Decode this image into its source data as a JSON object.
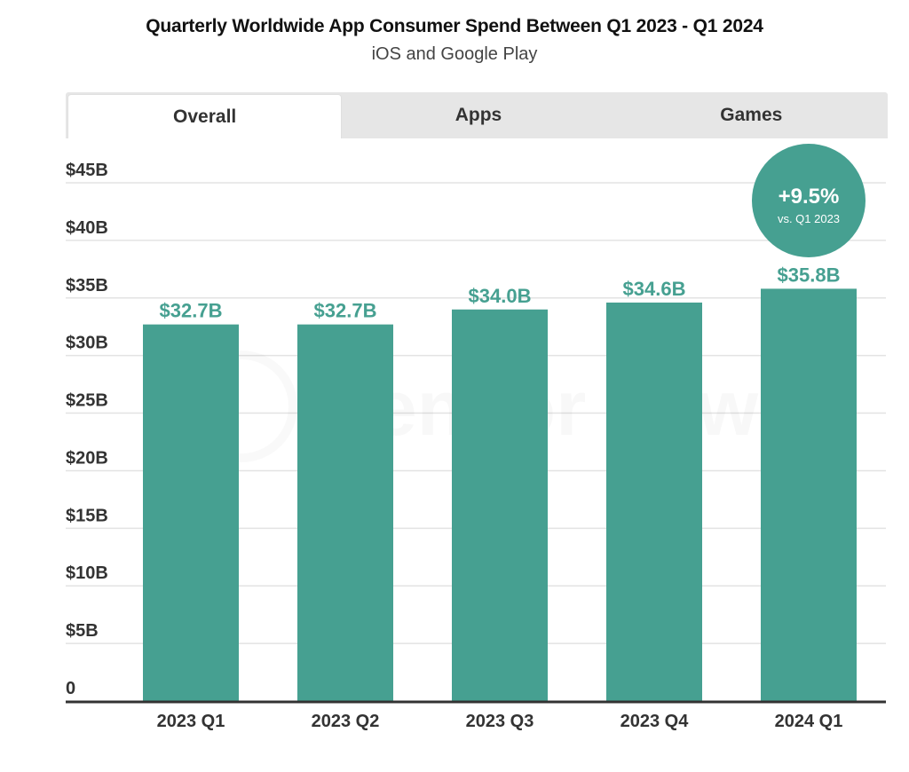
{
  "header": {
    "title": "Quarterly Worldwide App Consumer Spend Between Q1 2023 - Q1 2024",
    "subtitle": "iOS and Google Play"
  },
  "tabs": [
    {
      "label": "Overall",
      "active": true
    },
    {
      "label": "Apps",
      "active": false
    },
    {
      "label": "Games",
      "active": false
    }
  ],
  "watermark": "Sensor Tower",
  "colors": {
    "bar": "#46a091",
    "label": "#46a091",
    "badge": "#46a091",
    "grid": "#e3e3e3",
    "axis": "#333333"
  },
  "chart_data": {
    "type": "bar",
    "title": "Quarterly Worldwide App Consumer Spend Between Q1 2023 - Q1 2024",
    "subtitle": "iOS and Google Play",
    "xlabel": "",
    "ylabel": "",
    "categories": [
      "2023 Q1",
      "2023 Q2",
      "2023 Q3",
      "2023 Q4",
      "2024 Q1"
    ],
    "values": [
      32.7,
      32.7,
      34.0,
      34.6,
      35.8
    ],
    "data_labels": [
      "$32.7B",
      "$32.7B",
      "$34.0B",
      "$34.6B",
      "$35.8B"
    ],
    "ylim": [
      0,
      45
    ],
    "yticks": [
      0,
      5,
      10,
      15,
      20,
      25,
      30,
      35,
      40,
      45
    ],
    "ytick_labels": [
      "0",
      "$5B",
      "$10B",
      "$15B",
      "$20B",
      "$25B",
      "$30B",
      "$35B",
      "$40B",
      "$45B"
    ],
    "units": "USD billions",
    "grid": true,
    "legend": "none",
    "annotation": {
      "category": "2024 Q1",
      "value_text": "+9.5%",
      "caption": "vs. Q1 2023"
    }
  }
}
